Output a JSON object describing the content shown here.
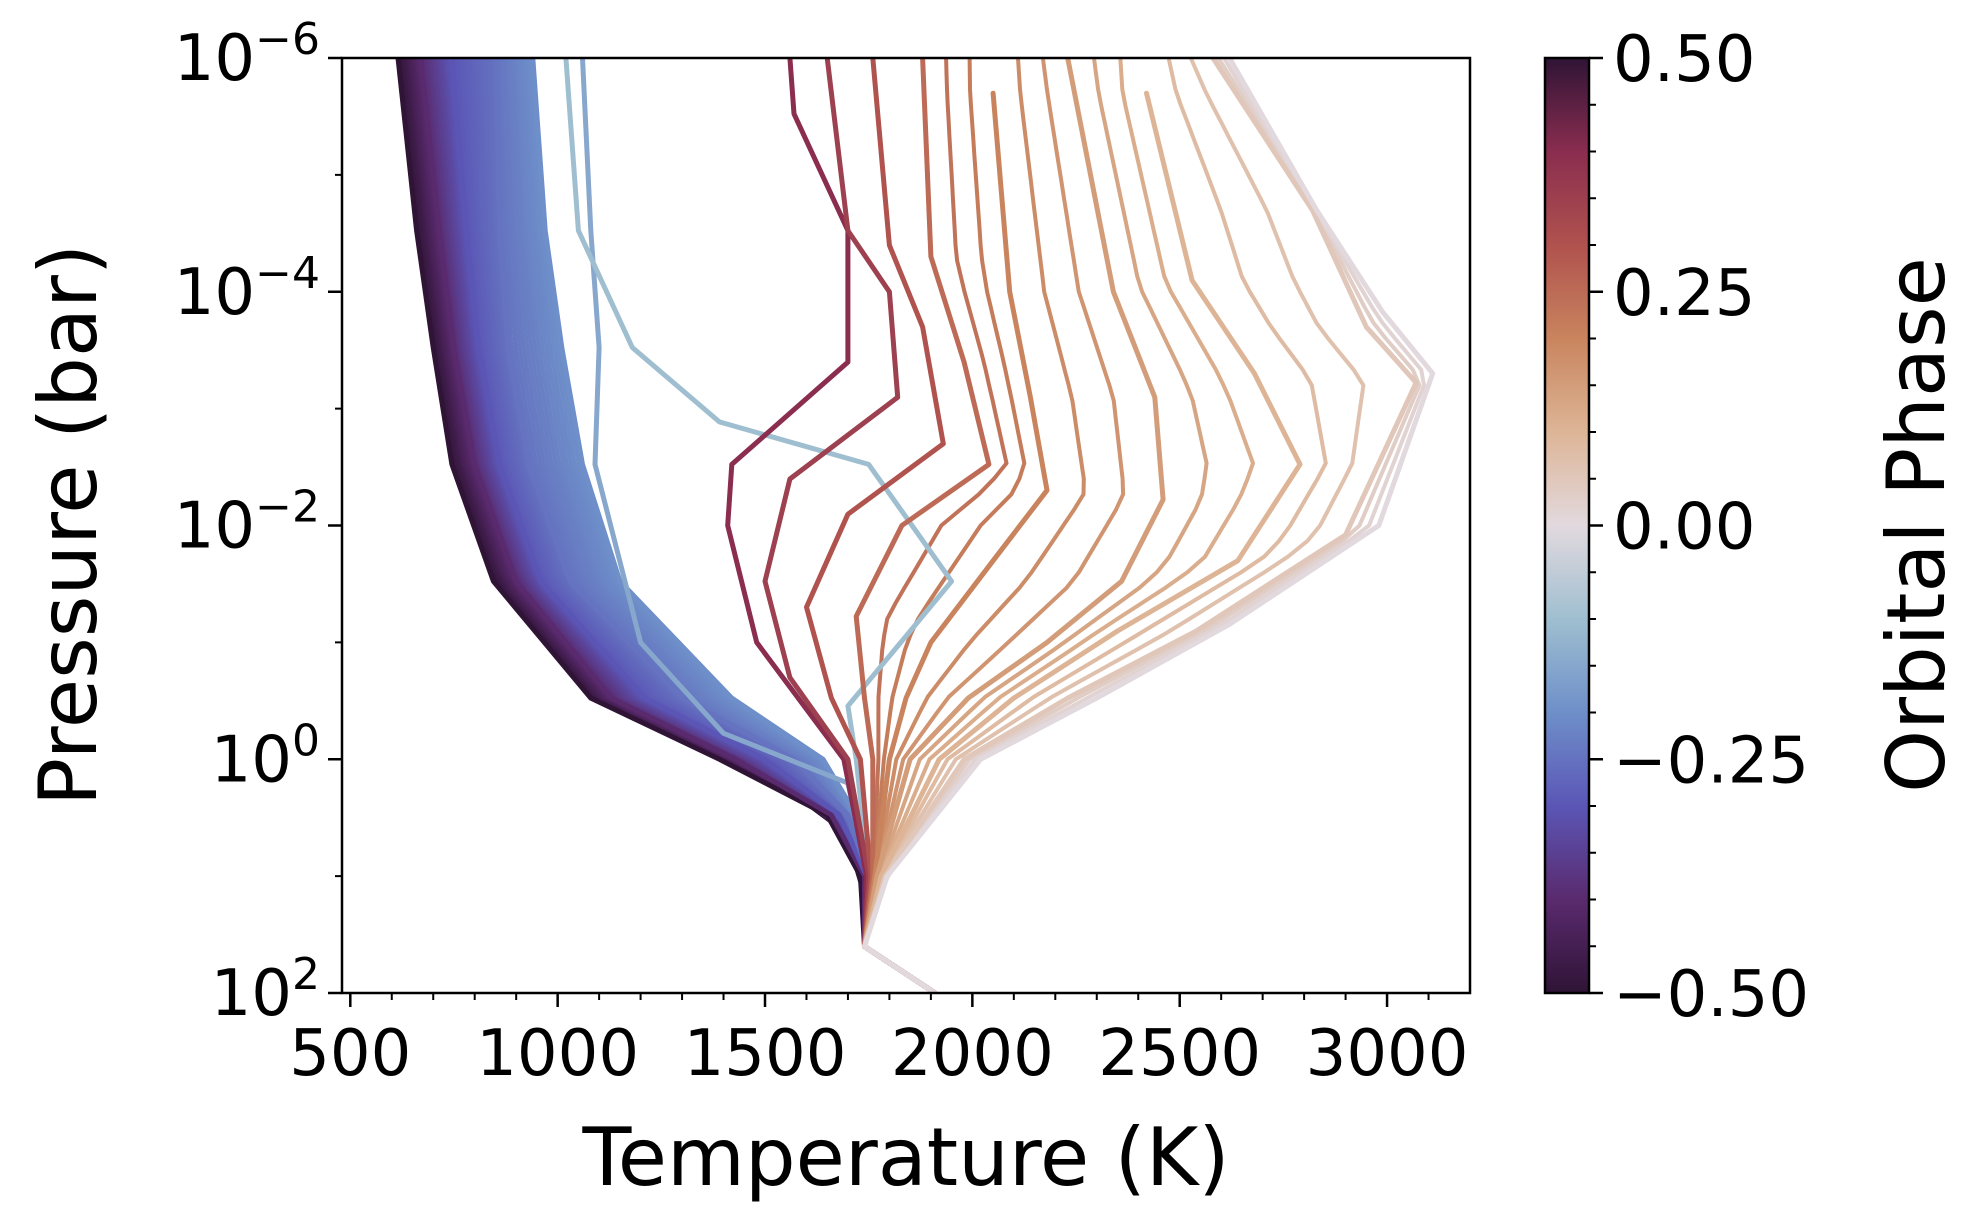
{
  "chart_data": {
    "type": "line",
    "title": "",
    "xlabel": "Temperature (K)",
    "ylabel": "Pressure (bar)",
    "xlim": [
      480,
      3200
    ],
    "ylim": [
      100,
      1e-06
    ],
    "yscale": "log",
    "y_inverted": true,
    "grid": false,
    "legend": "none",
    "x_ticks": [
      {
        "value": 500,
        "label": "500"
      },
      {
        "value": 1000,
        "label": "1000"
      },
      {
        "value": 1500,
        "label": "1500"
      },
      {
        "value": 2000,
        "label": "2000"
      },
      {
        "value": 2500,
        "label": "2500"
      },
      {
        "value": 3000,
        "label": "3000"
      }
    ],
    "y_ticks": [
      {
        "value": 1e-06,
        "base": "10",
        "exp": "−6"
      },
      {
        "value": 0.0001,
        "base": "10",
        "exp": "−4"
      },
      {
        "value": 0.01,
        "base": "10",
        "exp": "−2"
      },
      {
        "value": 1,
        "base": "10",
        "exp": "0"
      },
      {
        "value": 100,
        "base": "10",
        "exp": "2"
      }
    ],
    "colorbar": {
      "label": "Orbital Phase",
      "colormap": "twilight_shifted",
      "range": [
        -0.5,
        0.5
      ],
      "ticks": [
        {
          "value": 0.5,
          "label": "0.50"
        },
        {
          "value": 0.25,
          "label": "0.25"
        },
        {
          "value": 0.0,
          "label": "0.00"
        },
        {
          "value": -0.25,
          "label": "−0.25"
        },
        {
          "value": -0.5,
          "label": "−0.50"
        }
      ],
      "colors": [
        "#2f1436",
        "#5a2a6e",
        "#5b56b6",
        "#6e8fc9",
        "#9fbfd0",
        "#e2d9de",
        "#ddb596",
        "#c9845e",
        "#b0524e",
        "#8a2d4f",
        "#2f1436"
      ]
    },
    "series": [
      {
        "phase": -0.5,
        "curve": [
          [
            1910,
            100
          ],
          [
            1740,
            40
          ],
          [
            1730,
            10
          ],
          [
            1650,
            3
          ],
          [
            1390,
            1
          ],
          [
            1080,
            0.3
          ],
          [
            845,
            0.03
          ],
          [
            745,
            0.003
          ],
          [
            700,
            0.0003
          ],
          [
            660,
            3e-05
          ],
          [
            615,
            1e-06
          ]
        ]
      },
      {
        "phase": -0.4,
        "curve": [
          [
            1910,
            100
          ],
          [
            1740,
            40
          ],
          [
            1740,
            10
          ],
          [
            1660,
            3
          ],
          [
            1430,
            1
          ],
          [
            1130,
            0.3
          ],
          [
            900,
            0.03
          ],
          [
            800,
            0.003
          ],
          [
            750,
            0.0003
          ],
          [
            715,
            3e-05
          ],
          [
            670,
            1e-06
          ]
        ]
      },
      {
        "phase": -0.3,
        "curve": [
          [
            1910,
            100
          ],
          [
            1740,
            40
          ],
          [
            1745,
            10
          ],
          [
            1680,
            3
          ],
          [
            1500,
            1
          ],
          [
            1210,
            0.3
          ],
          [
            960,
            0.03
          ],
          [
            860,
            0.003
          ],
          [
            810,
            0.0003
          ],
          [
            780,
            3e-05
          ],
          [
            745,
            1e-06
          ]
        ]
      },
      {
        "phase": -0.25,
        "curve": [
          [
            1910,
            100
          ],
          [
            1740,
            40
          ],
          [
            1750,
            10
          ],
          [
            1700,
            3
          ],
          [
            1570,
            1
          ],
          [
            1300,
            0.3
          ],
          [
            1030,
            0.03
          ],
          [
            930,
            0.003
          ],
          [
            880,
            0.0003
          ],
          [
            860,
            3e-05
          ],
          [
            850,
            1e-06
          ]
        ]
      },
      {
        "phase": -0.2,
        "curve": [
          [
            1910,
            100
          ],
          [
            1740,
            40
          ],
          [
            1750,
            10
          ],
          [
            1720,
            3
          ],
          [
            1640,
            1
          ],
          [
            1420,
            0.3
          ],
          [
            1150,
            0.03
          ],
          [
            1060,
            0.003
          ],
          [
            1010,
            0.0003
          ],
          [
            970,
            3e-05
          ],
          [
            940,
            1e-06
          ]
        ]
      },
      {
        "phase": -0.15,
        "curve": [
          [
            1910,
            100
          ],
          [
            1740,
            40
          ],
          [
            1750,
            10
          ],
          [
            1700,
            1.6
          ],
          [
            1400,
            0.6
          ],
          [
            1200,
            0.1
          ],
          [
            1090,
            0.003
          ],
          [
            1100,
            0.0003
          ],
          [
            1080,
            3e-05
          ],
          [
            1060,
            1e-06
          ]
        ]
      },
      {
        "phase": -0.1,
        "curve": [
          [
            1910,
            100
          ],
          [
            1740,
            40
          ],
          [
            1750,
            10
          ],
          [
            1720,
            1
          ],
          [
            1700,
            0.35
          ],
          [
            1950,
            0.03
          ],
          [
            1750,
            0.003
          ],
          [
            1390,
            0.0013
          ],
          [
            1180,
            0.0003
          ],
          [
            1050,
            3e-05
          ],
          [
            1020,
            1e-06
          ]
        ]
      },
      {
        "phase": 0.4,
        "curve": [
          [
            1910,
            100
          ],
          [
            1740,
            40
          ],
          [
            1745,
            10
          ],
          [
            1690,
            1
          ],
          [
            1480,
            0.1
          ],
          [
            1410,
            0.01
          ],
          [
            1420,
            0.003
          ],
          [
            1700,
            0.0004
          ],
          [
            1700,
            3e-05
          ],
          [
            1570,
            3e-06
          ],
          [
            1560,
            1e-06
          ]
        ]
      },
      {
        "phase": 0.35,
        "curve": [
          [
            1910,
            100
          ],
          [
            1740,
            40
          ],
          [
            1750,
            10
          ],
          [
            1700,
            1
          ],
          [
            1560,
            0.2
          ],
          [
            1500,
            0.03
          ],
          [
            1560,
            0.004
          ],
          [
            1820,
            0.0008
          ],
          [
            1800,
            0.0001
          ],
          [
            1700,
            3e-05
          ],
          [
            1650,
            1e-06
          ]
        ]
      },
      {
        "phase": 0.3,
        "curve": [
          [
            1910,
            100
          ],
          [
            1740,
            40
          ],
          [
            1755,
            10
          ],
          [
            1730,
            1
          ],
          [
            1660,
            0.3
          ],
          [
            1600,
            0.05
          ],
          [
            1700,
            0.008
          ],
          [
            1930,
            0.002
          ],
          [
            1880,
            0.0002
          ],
          [
            1800,
            4e-05
          ],
          [
            1760,
            1e-06
          ]
        ]
      },
      {
        "phase": 0.25,
        "curve": [
          [
            1910,
            100
          ],
          [
            1740,
            40
          ],
          [
            1760,
            10
          ],
          [
            1760,
            1
          ],
          [
            1740,
            0.3
          ],
          [
            1720,
            0.06
          ],
          [
            1830,
            0.01
          ],
          [
            2040,
            0.003
          ],
          [
            1980,
            0.0004
          ],
          [
            1900,
            5e-05
          ],
          [
            1880,
            1e-06
          ]
        ]
      },
      {
        "phase": 0.2,
        "curve": [
          [
            1910,
            100
          ],
          [
            1740,
            40
          ],
          [
            1765,
            10
          ],
          [
            1800,
            1
          ],
          [
            1840,
            0.3
          ],
          [
            1900,
            0.1
          ],
          [
            2050,
            0.02
          ],
          [
            2180,
            0.005
          ],
          [
            2140,
            0.0008
          ],
          [
            2090,
            0.0001
          ],
          [
            2050,
            2e-06
          ]
        ]
      },
      {
        "phase": 0.15,
        "curve": [
          [
            1910,
            100
          ],
          [
            1740,
            40
          ],
          [
            1770,
            10
          ],
          [
            1850,
            1
          ],
          [
            1990,
            0.3
          ],
          [
            2180,
            0.1
          ],
          [
            2360,
            0.03
          ],
          [
            2460,
            0.006
          ],
          [
            2440,
            0.0008
          ],
          [
            2340,
            0.0001
          ],
          [
            2230,
            1e-06
          ]
        ]
      },
      {
        "phase": 0.1,
        "curve": [
          [
            1910,
            100
          ],
          [
            1740,
            40
          ],
          [
            1780,
            10
          ],
          [
            1920,
            1
          ],
          [
            2100,
            0.3
          ],
          [
            2350,
            0.08
          ],
          [
            2640,
            0.02
          ],
          [
            2790,
            0.003
          ],
          [
            2680,
            0.0005
          ],
          [
            2530,
            8e-05
          ],
          [
            2420,
            2e-06
          ]
        ]
      },
      {
        "phase": 0.05,
        "curve": [
          [
            1910,
            100
          ],
          [
            1740,
            40
          ],
          [
            1790,
            10
          ],
          [
            1980,
            1
          ],
          [
            2230,
            0.3
          ],
          [
            2540,
            0.08
          ],
          [
            2900,
            0.012
          ],
          [
            3070,
            0.0006
          ],
          [
            2950,
            0.0002
          ],
          [
            2820,
            2e-05
          ],
          [
            2580,
            1e-06
          ]
        ]
      },
      {
        "phase": 0.0,
        "curve": [
          [
            1910,
            100
          ],
          [
            1740,
            40
          ],
          [
            1795,
            10
          ],
          [
            2020,
            1
          ],
          [
            2300,
            0.3
          ],
          [
            2620,
            0.07
          ],
          [
            2980,
            0.01
          ],
          [
            3110,
            0.0005
          ],
          [
            2990,
            0.00015
          ],
          [
            2830,
            2e-05
          ],
          [
            2620,
            1e-06
          ]
        ]
      }
    ]
  }
}
